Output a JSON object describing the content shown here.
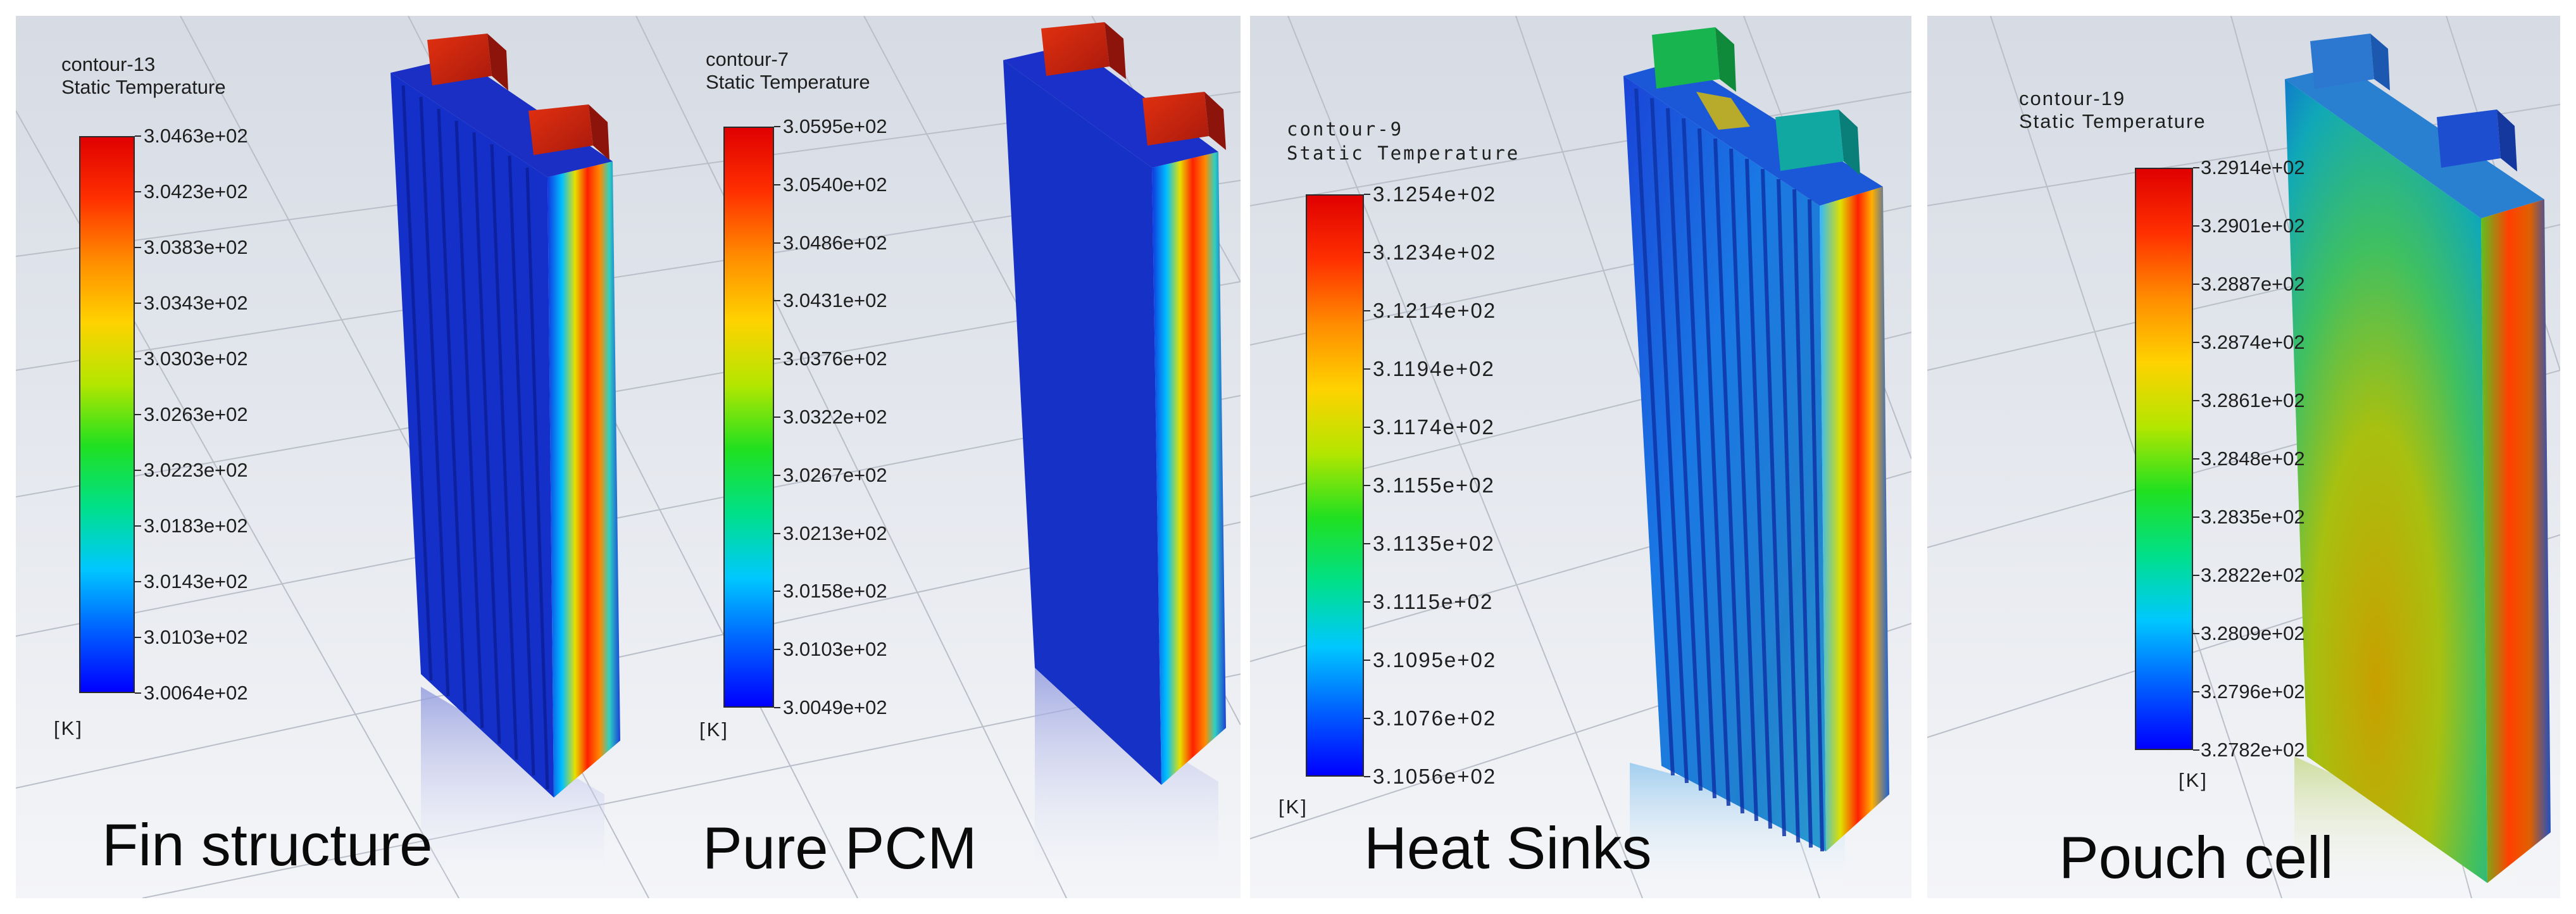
{
  "colormap": [
    "#0000ff",
    "#0060ff",
    "#00c8ff",
    "#00e08a",
    "#20e020",
    "#b4e600",
    "#ffd200",
    "#ff8c00",
    "#ff3000",
    "#e00000"
  ],
  "panels": [
    {
      "contour_name": "contour-13",
      "variable": "Static Temperature",
      "ticks": [
        "3.0463e+02",
        "3.0423e+02",
        "3.0383e+02",
        "3.0343e+02",
        "3.0303e+02",
        "3.0263e+02",
        "3.0223e+02",
        "3.0183e+02",
        "3.0143e+02",
        "3.0103e+02",
        "3.0064e+02"
      ],
      "unit": "[K]",
      "caption": "Fin structure"
    },
    {
      "contour_name": "contour-7",
      "variable": "Static Temperature",
      "ticks": [
        "3.0595e+02",
        "3.0540e+02",
        "3.0486e+02",
        "3.0431e+02",
        "3.0376e+02",
        "3.0322e+02",
        "3.0267e+02",
        "3.0213e+02",
        "3.0158e+02",
        "3.0103e+02",
        "3.0049e+02"
      ],
      "unit": "[K]",
      "caption": "Pure PCM"
    },
    {
      "contour_name": "contour-9",
      "variable": "Static Temperature",
      "ticks": [
        "3.1254e+02",
        "3.1234e+02",
        "3.1214e+02",
        "3.1194e+02",
        "3.1174e+02",
        "3.1155e+02",
        "3.1135e+02",
        "3.1115e+02",
        "3.1095e+02",
        "3.1076e+02",
        "3.1056e+02"
      ],
      "unit": "[K]",
      "caption": "Heat Sinks"
    },
    {
      "contour_name": "contour-19",
      "variable": "Static Temperature",
      "ticks": [
        "3.2914e+02",
        "3.2901e+02",
        "3.2887e+02",
        "3.2874e+02",
        "3.2861e+02",
        "3.2848e+02",
        "3.2835e+02",
        "3.2822e+02",
        "3.2809e+02",
        "3.2796e+02",
        "3.2782e+02"
      ],
      "unit": "[K]",
      "caption": "Pouch cell"
    }
  ]
}
